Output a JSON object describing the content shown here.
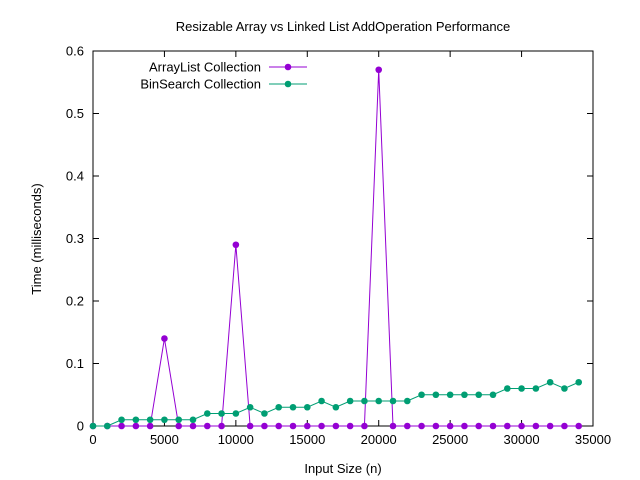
{
  "chart_data": {
    "type": "line",
    "title": "Resizable Array vs Linked List AddOperation Performance",
    "xlabel": "Input Size (n)",
    "ylabel": "Time (milliseconds)",
    "xlim": [
      0,
      35000
    ],
    "ylim": [
      0,
      0.6
    ],
    "x_ticks": [
      0,
      5000,
      10000,
      15000,
      20000,
      25000,
      30000,
      35000
    ],
    "x_tick_labels": [
      "0",
      "5000",
      "10000",
      "15000",
      "20000",
      "25000",
      "30000",
      "35000"
    ],
    "y_ticks": [
      0,
      0.1,
      0.2,
      0.3,
      0.4,
      0.5,
      0.6
    ],
    "y_tick_labels": [
      "0",
      "0.1",
      "0.2",
      "0.3",
      "0.4",
      "0.5",
      "0.6"
    ],
    "grid": false,
    "legend_position": "top-left",
    "x": [
      0,
      1000,
      2000,
      3000,
      4000,
      5000,
      6000,
      7000,
      8000,
      9000,
      10000,
      11000,
      12000,
      13000,
      14000,
      15000,
      16000,
      17000,
      18000,
      19000,
      20000,
      21000,
      22000,
      23000,
      24000,
      25000,
      26000,
      27000,
      28000,
      29000,
      30000,
      31000,
      32000,
      33000,
      34000
    ],
    "series": [
      {
        "name": "ArrayList Collection",
        "color": "#9400d3",
        "values": [
          0,
          0,
          0,
          0,
          0,
          0.14,
          0,
          0,
          0,
          0,
          0.29,
          0,
          0,
          0,
          0,
          0,
          0,
          0,
          0,
          0,
          0.57,
          0,
          0,
          0,
          0,
          0,
          0,
          0,
          0,
          0,
          0,
          0,
          0,
          0,
          0
        ]
      },
      {
        "name": "BinSearch Collection",
        "color": "#009e73",
        "values": [
          0,
          0,
          0.01,
          0.01,
          0.01,
          0.01,
          0.01,
          0.01,
          0.02,
          0.02,
          0.02,
          0.03,
          0.02,
          0.03,
          0.03,
          0.03,
          0.04,
          0.03,
          0.04,
          0.04,
          0.04,
          0.04,
          0.04,
          0.05,
          0.05,
          0.05,
          0.05,
          0.05,
          0.05,
          0.06,
          0.06,
          0.06,
          0.07,
          0.06,
          0.07
        ]
      }
    ]
  }
}
